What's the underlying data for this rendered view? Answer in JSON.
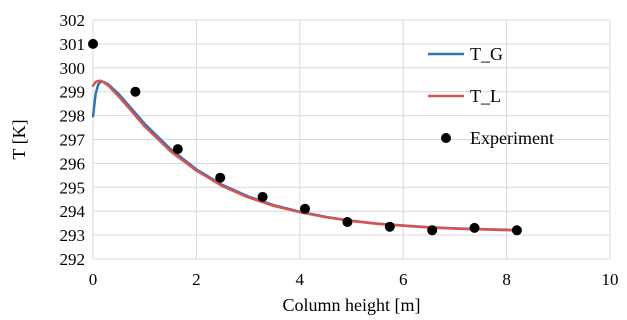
{
  "chart_data": {
    "type": "line",
    "title": "",
    "xlabel": "Column height [m]",
    "ylabel": "T [K]",
    "xlim": [
      0,
      10
    ],
    "ylim": [
      292,
      302
    ],
    "xticks": [
      "0",
      "2",
      "4",
      "6",
      "8",
      "10"
    ],
    "yticks": [
      "292",
      "293",
      "294",
      "295",
      "296",
      "297",
      "298",
      "299",
      "300",
      "301",
      "302"
    ],
    "grid": true,
    "legend_position": "right",
    "series": [
      {
        "name": "T_G",
        "kind": "line",
        "color": "#2E75B6",
        "x": [
          0,
          0.05,
          0.1,
          0.15,
          0.2,
          0.3,
          0.5,
          0.8,
          1.0,
          1.5,
          2.0,
          2.5,
          3.0,
          3.5,
          4.0,
          4.5,
          5.0,
          5.5,
          6.0,
          6.5,
          7.0,
          7.5,
          8.0,
          8.2
        ],
        "y": [
          297.97,
          298.9,
          299.3,
          299.42,
          299.42,
          299.3,
          298.9,
          298.15,
          297.65,
          296.6,
          295.75,
          295.1,
          294.62,
          294.25,
          293.98,
          293.76,
          293.6,
          293.48,
          293.4,
          293.33,
          293.28,
          293.25,
          293.22,
          293.21
        ]
      },
      {
        "name": "T_L",
        "kind": "line",
        "color": "#D9534F",
        "x": [
          0,
          0.05,
          0.1,
          0.15,
          0.2,
          0.3,
          0.5,
          0.8,
          1.0,
          1.5,
          2.0,
          2.5,
          3.0,
          3.5,
          4.0,
          4.5,
          5.0,
          5.5,
          6.0,
          6.5,
          7.0,
          7.5,
          8.0,
          8.2
        ],
        "y": [
          299.25,
          299.4,
          299.45,
          299.45,
          299.4,
          299.25,
          298.8,
          298.05,
          297.55,
          296.5,
          295.7,
          295.05,
          294.58,
          294.22,
          293.96,
          293.75,
          293.59,
          293.47,
          293.39,
          293.32,
          293.27,
          293.24,
          293.21,
          293.2
        ]
      },
      {
        "name": "Experiment",
        "kind": "scatter",
        "color": "#000000",
        "x": [
          0,
          0.82,
          1.64,
          2.46,
          3.28,
          4.1,
          4.92,
          5.74,
          6.56,
          7.38,
          8.2
        ],
        "y": [
          301.0,
          299.0,
          296.6,
          295.4,
          294.6,
          294.1,
          293.55,
          293.35,
          293.2,
          293.3,
          293.2
        ]
      }
    ]
  }
}
